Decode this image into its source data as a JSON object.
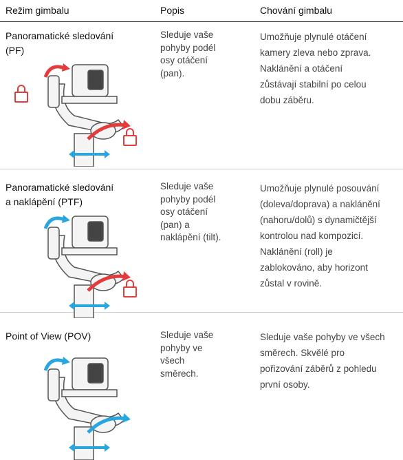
{
  "table": {
    "headers": [
      "Režim gimbalu",
      "Popis",
      "Chování gimbalu"
    ],
    "rows": [
      {
        "mode": [
          "Panoramatické sledování",
          "(PF)"
        ],
        "description": [
          "Sleduje vaše",
          "pohyby podél",
          "osy otáčení",
          "(pan)."
        ],
        "behavior": [
          "Umožňuje plynulé otáčení",
          "kamery zleva nebo zprava.",
          "Naklánění a otáčení",
          "zůstávají stabilní po celou",
          "dobu záběru."
        ]
      },
      {
        "mode": [
          "Panoramatické sledování",
          "a naklápění (PTF)"
        ],
        "description": [
          "Sleduje vaše",
          "pohyby podél",
          "osy otáčení",
          "(pan) a",
          "naklápění (tilt)."
        ],
        "behavior": [
          "Umožňuje plynulé posouvání",
          "(doleva/doprava) a naklánění",
          "(nahoru/dolů) s dynamičtější",
          "kontrolou nad kompozicí.",
          "Naklánění (roll) je",
          "zablokováno, aby horizont",
          "zůstal v rovině."
        ]
      },
      {
        "mode": [
          "Point of View (POV)"
        ],
        "description": [
          "Sleduje vaše",
          "pohyby ve",
          "všech",
          "směrech."
        ],
        "behavior": [
          "Sleduje vaše pohyby ve všech",
          "směrech. Skvělé pro",
          "pořizování záběrů z pohledu",
          "první osoby."
        ]
      }
    ]
  }
}
